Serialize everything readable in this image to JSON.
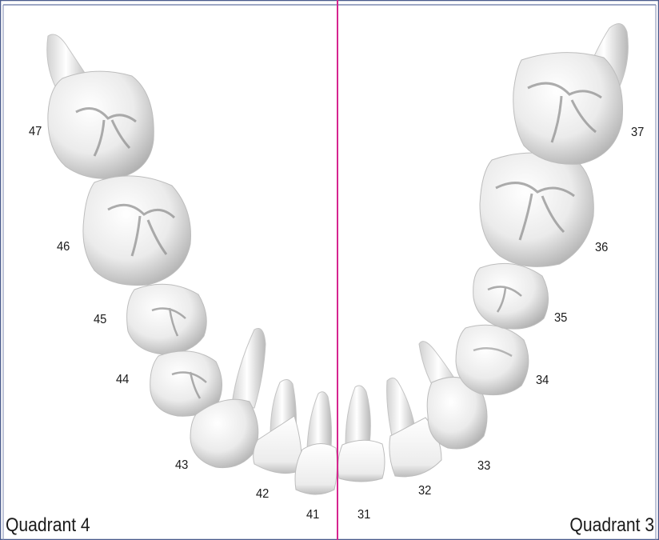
{
  "teeth": {
    "t47": "47",
    "t46": "46",
    "t45": "45",
    "t44": "44",
    "t43": "43",
    "t42": "42",
    "t41": "41",
    "t31": "31",
    "t32": "32",
    "t33": "33",
    "t34": "34",
    "t35": "35",
    "t36": "36",
    "t37": "37"
  },
  "quadrants": {
    "left": "Quadrant 4",
    "right": "Quadrant 3"
  },
  "colors": {
    "midline": "#d6248f",
    "border": "#4a5b8c",
    "tooth": "#f2f2f2",
    "shade": "#b5b5b5"
  }
}
